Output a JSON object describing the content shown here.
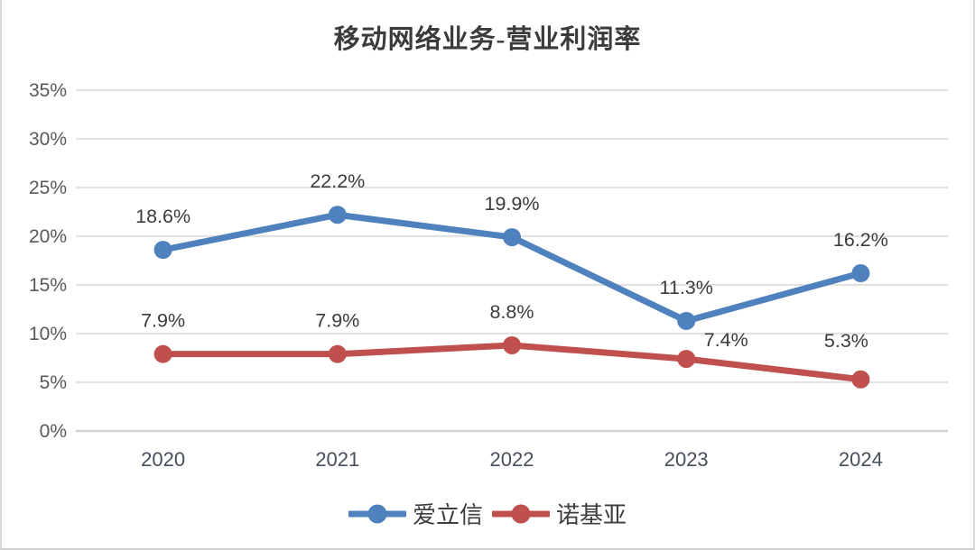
{
  "chart_data": {
    "type": "line",
    "title": "移动网络业务-营业利润率",
    "categories": [
      "2020",
      "2021",
      "2022",
      "2023",
      "2024"
    ],
    "series": [
      {
        "name": "爱立信",
        "color": "#4E81BD",
        "values": [
          18.6,
          22.2,
          19.9,
          11.3,
          16.2
        ],
        "labels": [
          "18.6%",
          "22.2%",
          "19.9%",
          "11.3%",
          "16.2%"
        ],
        "label_offsets": [
          [
            0,
            -30
          ],
          [
            0,
            -30
          ],
          [
            0,
            -30
          ],
          [
            0,
            -30
          ],
          [
            0,
            -30
          ]
        ]
      },
      {
        "name": "诺基亚",
        "color": "#C0504D",
        "values": [
          7.9,
          7.9,
          8.8,
          7.4,
          5.3
        ],
        "labels": [
          "7.9%",
          "7.9%",
          "8.8%",
          "7.4%",
          "5.3%"
        ],
        "label_offsets": [
          [
            0,
            -30
          ],
          [
            0,
            -30
          ],
          [
            0,
            -30
          ],
          [
            44,
            -14
          ],
          [
            -16,
            -36
          ]
        ]
      }
    ],
    "yticks": [
      "0%",
      "5%",
      "10%",
      "15%",
      "20%",
      "25%",
      "30%",
      "35%"
    ],
    "ylim": [
      0,
      35
    ],
    "ytick_step": 5,
    "grid": true,
    "legend_position": "bottom",
    "colors": {
      "grid": "#e2e2e2",
      "baseline": "#d2d2d2",
      "axis_text": "#595959",
      "year_text": "#474f5c",
      "data_label": "#3b3b3b",
      "title": "#3b3b3b",
      "border": "#d9d9d9"
    }
  }
}
